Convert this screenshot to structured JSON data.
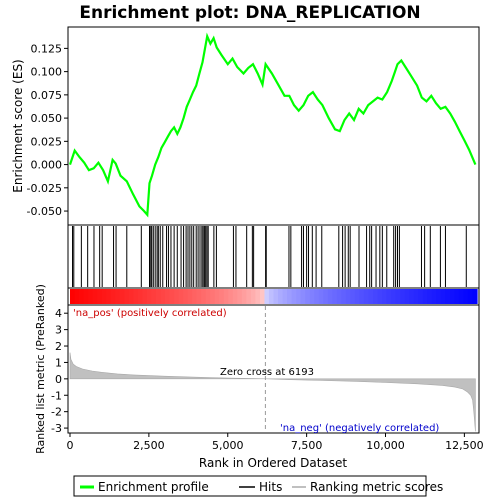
{
  "chart_data": {
    "type": "line",
    "title": "Enrichment plot: DNA_REPLICATION",
    "top_panel": {
      "ylabel": "Enrichment score (ES)",
      "ylim": [
        -0.065,
        0.148
      ],
      "yticks": [
        -0.05,
        -0.025,
        0.0,
        0.025,
        0.05,
        0.075,
        0.1,
        0.125
      ],
      "ytick_labels": [
        "-0.050",
        "-0.025",
        "0.000",
        "0.025",
        "0.050",
        "0.075",
        "0.100",
        "0.125"
      ],
      "series_name": "Enrichment profile",
      "color": "#00ff00",
      "x": [
        0,
        150,
        300,
        450,
        600,
        750,
        900,
        1050,
        1200,
        1350,
        1450,
        1600,
        1800,
        2000,
        2200,
        2350,
        2450,
        2520,
        2600,
        2700,
        2800,
        2900,
        3000,
        3100,
        3200,
        3300,
        3400,
        3500,
        3600,
        3700,
        3800,
        3900,
        4000,
        4100,
        4200,
        4280,
        4350,
        4450,
        4550,
        4650,
        4800,
        5000,
        5150,
        5300,
        5500,
        5650,
        5800,
        5950,
        6100,
        6200,
        6400,
        6600,
        6800,
        6950,
        7100,
        7250,
        7400,
        7550,
        7700,
        7850,
        8000,
        8200,
        8400,
        8550,
        8700,
        8850,
        9000,
        9150,
        9300,
        9450,
        9600,
        9750,
        9900,
        10050,
        10200,
        10300,
        10380,
        10500,
        10650,
        10800,
        11000,
        11150,
        11300,
        11450,
        11600,
        11750,
        11900,
        12050,
        12200,
        12350,
        12500,
        12650,
        12850
      ],
      "y": [
        0.0,
        0.015,
        0.008,
        0.002,
        -0.006,
        -0.004,
        0.002,
        -0.006,
        -0.018,
        0.005,
        0.001,
        -0.012,
        -0.018,
        -0.032,
        -0.045,
        -0.05,
        -0.054,
        -0.02,
        -0.012,
        0.0,
        0.008,
        0.018,
        0.024,
        0.03,
        0.036,
        0.04,
        0.033,
        0.04,
        0.05,
        0.062,
        0.07,
        0.078,
        0.085,
        0.098,
        0.11,
        0.125,
        0.138,
        0.13,
        0.136,
        0.126,
        0.118,
        0.108,
        0.114,
        0.105,
        0.098,
        0.104,
        0.108,
        0.098,
        0.086,
        0.108,
        0.098,
        0.086,
        0.074,
        0.074,
        0.064,
        0.058,
        0.064,
        0.074,
        0.078,
        0.07,
        0.064,
        0.05,
        0.038,
        0.036,
        0.048,
        0.055,
        0.048,
        0.06,
        0.055,
        0.064,
        0.068,
        0.072,
        0.07,
        0.078,
        0.09,
        0.1,
        0.108,
        0.112,
        0.104,
        0.096,
        0.085,
        0.072,
        0.068,
        0.074,
        0.066,
        0.06,
        0.062,
        0.055,
        0.046,
        0.036,
        0.026,
        0.016,
        0.0
      ]
    },
    "hits_x": [
      80,
      120,
      360,
      560,
      760,
      940,
      1020,
      1380,
      1460,
      1800,
      2260,
      2520,
      2560,
      2590,
      2640,
      2700,
      2760,
      2800,
      2860,
      2940,
      3060,
      3120,
      3200,
      3300,
      3400,
      3520,
      3600,
      3680,
      3740,
      3800,
      3860,
      3920,
      4000,
      4060,
      4120,
      4180,
      4220,
      4260,
      4300,
      4340,
      4380,
      4560,
      4640,
      5180,
      5260,
      5600,
      5780,
      5820,
      6200,
      6220,
      6940,
      7000,
      7340,
      7400,
      7500,
      7560,
      7680,
      7800,
      7980,
      8520,
      8640,
      8720,
      8820,
      8880,
      9160,
      9400,
      9500,
      9560,
      9700,
      9820,
      9900,
      10040,
      10260,
      10320,
      10380,
      10440,
      11140,
      11240,
      11420,
      11740,
      11900,
      12560
    ],
    "bar_panel": {
      "pos_label": "'na_pos' (positively correlated)",
      "neg_label": "'na_neg' (negatively correlated)",
      "pos_color": "#ff0000",
      "neg_color": "#0000ff"
    },
    "bottom_panel": {
      "ylabel": "Ranked list metric (PreRanked)",
      "xlabel": "Rank in Ordered Dataset",
      "ylim": [
        -3.3,
        4.5
      ],
      "yticks": [
        -3,
        -2,
        -1,
        0,
        1,
        2,
        3,
        4
      ],
      "ytick_labels": [
        "-3",
        "-2",
        "-1",
        "0",
        "1",
        "2",
        "3",
        "4"
      ],
      "zero_cross_label": "Zero cross at 6193",
      "zero_cross": 6193,
      "metric_x": [
        0,
        30,
        100,
        200,
        400,
        700,
        1000,
        1500,
        2000,
        3000,
        4000,
        5000,
        6193,
        7000,
        8000,
        9000,
        10000,
        11000,
        11800,
        12200,
        12450,
        12600,
        12700,
        12760,
        12800,
        12850
      ],
      "metric_y": [
        1.6,
        1.2,
        0.9,
        0.75,
        0.6,
        0.48,
        0.4,
        0.3,
        0.24,
        0.16,
        0.1,
        0.05,
        0.0,
        -0.05,
        -0.1,
        -0.15,
        -0.22,
        -0.3,
        -0.4,
        -0.5,
        -0.62,
        -0.8,
        -1.0,
        -1.3,
        -2.0,
        -3.2
      ]
    },
    "xlim": [
      0,
      12900
    ],
    "xticks": [
      0,
      2500,
      5000,
      7500,
      10000,
      12500
    ],
    "xtick_labels": [
      "0",
      "2,500",
      "5,000",
      "7,500",
      "10,000",
      "12,500"
    ],
    "legend": [
      {
        "label": "Enrichment profile",
        "color": "#00ff00"
      },
      {
        "label": "Hits",
        "color": "#000000"
      },
      {
        "label": "Ranking metric scores",
        "color": "#c0c0c0"
      }
    ],
    "legend_position": "bottom"
  }
}
